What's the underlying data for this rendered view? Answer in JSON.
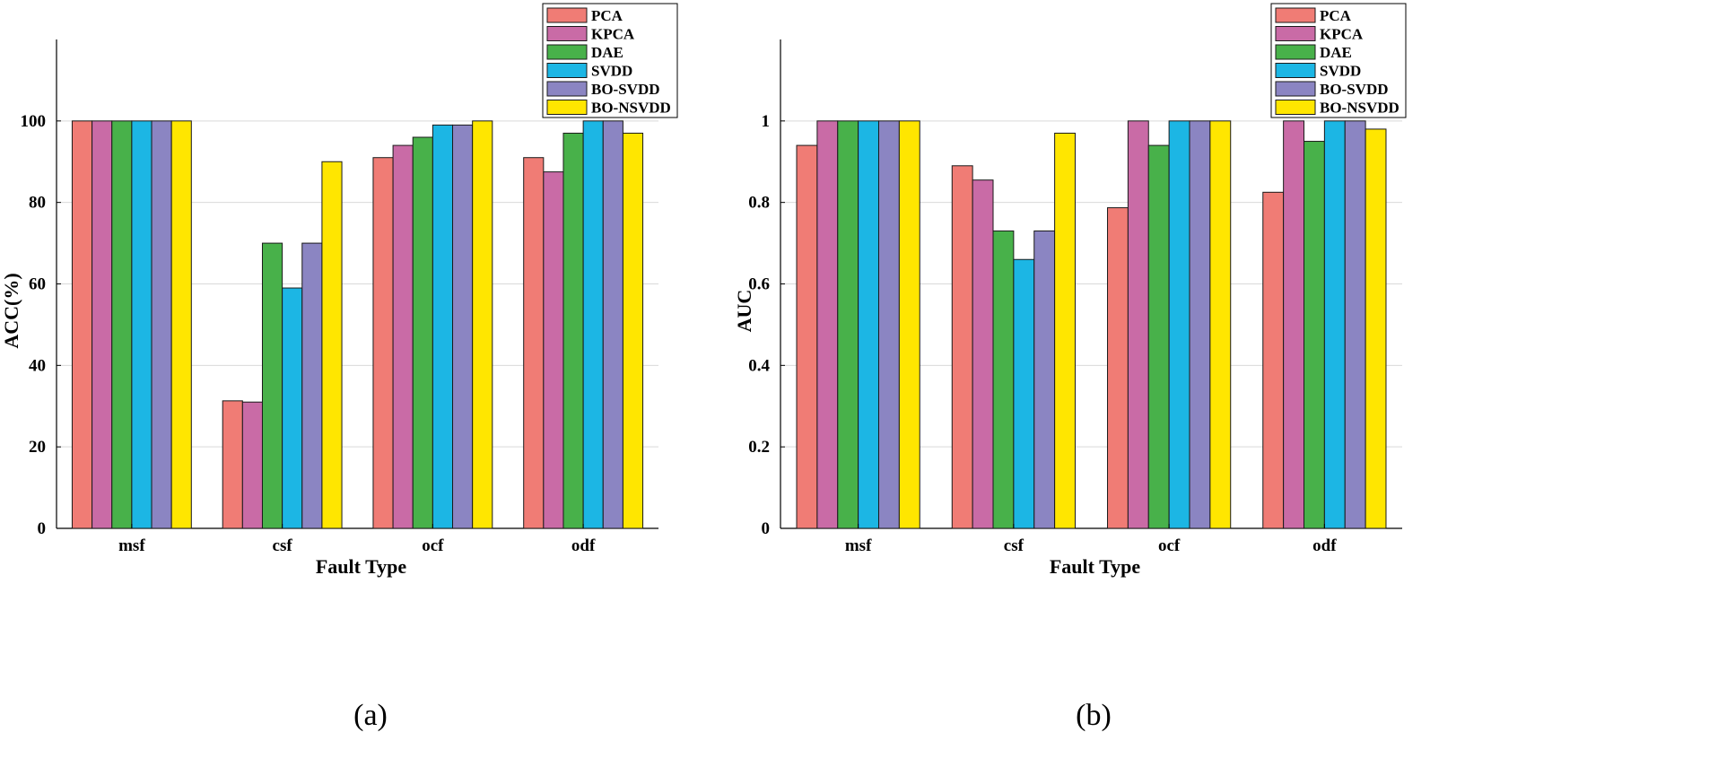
{
  "chart_data": [
    {
      "type": "bar",
      "panel_caption": "(a)",
      "categories": [
        "msf",
        "csf",
        "ocf",
        "odf"
      ],
      "xlabel": "Fault Type",
      "ylabel": "ACC(%)",
      "ylim": [
        0,
        120
      ],
      "yticks": [
        0,
        20,
        40,
        60,
        80,
        100
      ],
      "ytick_labels": [
        "0",
        "20",
        "40",
        "60",
        "80",
        "100"
      ],
      "grid": "horizontal",
      "legend_position": "top-right",
      "series": [
        {
          "name": "PCA",
          "color": "#F07C75",
          "values": [
            100,
            31.3,
            91,
            91
          ]
        },
        {
          "name": "KPCA",
          "color": "#C96BA6",
          "values": [
            100,
            31,
            94,
            87.5
          ]
        },
        {
          "name": "DAE",
          "color": "#48B14A",
          "values": [
            100,
            70,
            96,
            97
          ]
        },
        {
          "name": "SVDD",
          "color": "#1CB6E4",
          "values": [
            100,
            59,
            99,
            100
          ]
        },
        {
          "name": "BO-SVDD",
          "color": "#8B85C2",
          "values": [
            100,
            70,
            99,
            100
          ]
        },
        {
          "name": "BO-NSVDD",
          "color": "#FFE600",
          "values": [
            100,
            90,
            100,
            97
          ]
        }
      ]
    },
    {
      "type": "bar",
      "panel_caption": "(b)",
      "categories": [
        "msf",
        "csf",
        "ocf",
        "odf"
      ],
      "xlabel": "Fault Type",
      "ylabel": "AUC",
      "ylim": [
        0,
        1.2
      ],
      "yticks": [
        0,
        0.2,
        0.4,
        0.6,
        0.8,
        1
      ],
      "ytick_labels": [
        "0",
        "0.2",
        "0.4",
        "0.6",
        "0.8",
        "1"
      ],
      "grid": "horizontal",
      "legend_position": "top-right",
      "series": [
        {
          "name": "PCA",
          "color": "#F07C75",
          "values": [
            0.94,
            0.89,
            0.787,
            0.825
          ]
        },
        {
          "name": "KPCA",
          "color": "#C96BA6",
          "values": [
            1,
            0.855,
            1,
            1
          ]
        },
        {
          "name": "DAE",
          "color": "#48B14A",
          "values": [
            1,
            0.73,
            0.94,
            0.95
          ]
        },
        {
          "name": "SVDD",
          "color": "#1CB6E4",
          "values": [
            1,
            0.66,
            1,
            1
          ]
        },
        {
          "name": "BO-SVDD",
          "color": "#8B85C2",
          "values": [
            1,
            0.73,
            1,
            1
          ]
        },
        {
          "name": "BO-NSVDD",
          "color": "#FFE600",
          "values": [
            1,
            0.97,
            1,
            0.98
          ]
        }
      ]
    }
  ]
}
